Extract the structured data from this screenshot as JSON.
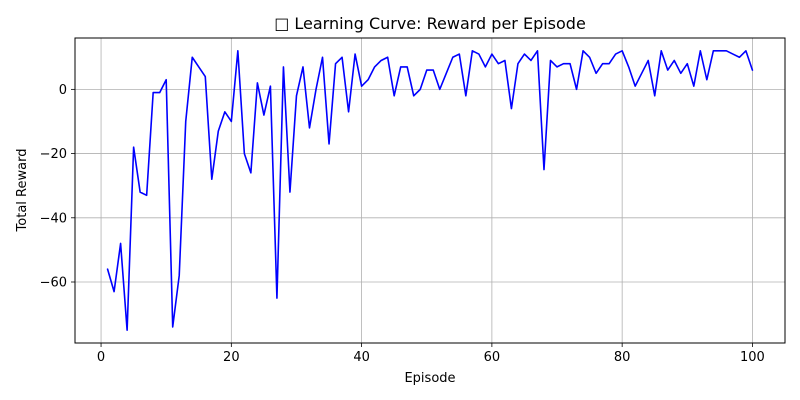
{
  "chart_data": {
    "type": "line",
    "title": "□ Learning Curve: Reward per Episode",
    "xlabel": "Episode",
    "ylabel": "Total Reward",
    "xlim": [
      -4,
      105
    ],
    "ylim": [
      -79,
      16
    ],
    "x_ticks": [
      0,
      20,
      40,
      60,
      80,
      100
    ],
    "y_ticks": [
      0,
      -20,
      -40,
      -60
    ],
    "grid": true,
    "legend": "none",
    "series": [
      {
        "color": "#0000ff",
        "x": [
          1,
          2,
          3,
          4,
          5,
          6,
          7,
          8,
          9,
          10,
          11,
          12,
          13,
          14,
          15,
          16,
          17,
          18,
          19,
          20,
          21,
          22,
          23,
          24,
          25,
          26,
          27,
          28,
          29,
          30,
          31,
          32,
          33,
          34,
          35,
          36,
          37,
          38,
          39,
          40,
          41,
          42,
          43,
          44,
          45,
          46,
          47,
          48,
          49,
          50,
          51,
          52,
          53,
          54,
          55,
          56,
          57,
          58,
          59,
          60,
          61,
          62,
          63,
          64,
          65,
          66,
          67,
          68,
          69,
          70,
          71,
          72,
          73,
          74,
          75,
          76,
          77,
          78,
          79,
          80,
          81,
          82,
          83,
          84,
          85,
          86,
          87,
          88,
          89,
          90,
          91,
          92,
          93,
          94,
          95,
          96,
          97,
          98,
          99,
          100
        ],
        "values": [
          -56,
          -63,
          -48,
          -75,
          -18,
          -32,
          -33,
          -1,
          -1,
          3,
          -74,
          -58,
          -10,
          10,
          7,
          4,
          -28,
          -13,
          -7,
          -10,
          12,
          -20,
          -26,
          2,
          -8,
          1,
          -65,
          7,
          -32,
          -2,
          7,
          -12,
          0,
          10,
          -17,
          8,
          10,
          -7,
          11,
          1,
          3,
          7,
          9,
          10,
          -2,
          7,
          7,
          -2,
          0,
          6,
          6,
          0,
          5,
          10,
          11,
          -2,
          12,
          11,
          7,
          11,
          8,
          9,
          -6,
          8,
          11,
          9,
          12,
          -25,
          9,
          7,
          8,
          8,
          0,
          12,
          10,
          5,
          8,
          8,
          11,
          12,
          7,
          1,
          5,
          9,
          -2,
          12,
          6,
          9,
          5,
          8,
          1,
          12,
          3,
          12,
          12,
          12,
          11,
          10,
          12,
          6
        ]
      }
    ]
  }
}
